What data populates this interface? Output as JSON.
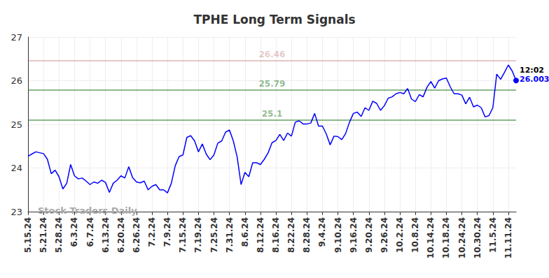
{
  "chart_data": {
    "type": "line",
    "title": "TPHE Long Term Signals",
    "watermark": "Stock Traders Daily",
    "color": "#0000ff",
    "grid": true,
    "ylim": [
      23,
      27
    ],
    "yticks": [
      23,
      24,
      25,
      26,
      27
    ],
    "categories": [
      "5.15.24",
      null,
      null,
      null,
      "5.21.24",
      null,
      null,
      null,
      "5.28.24",
      null,
      null,
      null,
      "6.3.24",
      null,
      null,
      null,
      "6.7.24",
      null,
      null,
      null,
      "6.13.24",
      null,
      null,
      null,
      "6.20.24",
      null,
      null,
      null,
      "6.26.24",
      null,
      null,
      null,
      "7.2.24",
      null,
      null,
      null,
      "7.9.24",
      null,
      null,
      null,
      "7.15.24",
      null,
      null,
      null,
      "7.19.24",
      null,
      null,
      null,
      "7.25.24",
      null,
      null,
      null,
      "7.31.24",
      null,
      null,
      null,
      "8.6.24",
      null,
      null,
      null,
      "8.12.24",
      null,
      null,
      null,
      "8.16.24",
      null,
      null,
      null,
      "8.22.24",
      null,
      null,
      null,
      "8.28.24",
      null,
      null,
      null,
      "9.4.24",
      null,
      null,
      null,
      "9.10.24",
      null,
      null,
      null,
      "9.16.24",
      null,
      null,
      null,
      "9.20.24",
      null,
      null,
      null,
      "9.26.24",
      null,
      null,
      null,
      "10.2.24",
      null,
      null,
      null,
      "10.8.24",
      null,
      null,
      null,
      "10.14.24",
      null,
      null,
      null,
      "10.18.24",
      null,
      null,
      null,
      "10.24.24",
      null,
      null,
      null,
      "10.30.24",
      null,
      null,
      null,
      "11.5.24",
      null,
      null,
      null,
      "11.11.24",
      null,
      null
    ],
    "values": [
      24.27,
      24.32,
      24.37,
      24.35,
      24.33,
      24.2,
      23.87,
      23.95,
      23.8,
      23.52,
      23.65,
      24.08,
      23.82,
      23.75,
      23.77,
      23.7,
      23.62,
      23.68,
      23.65,
      23.72,
      23.67,
      23.44,
      23.65,
      23.72,
      23.82,
      23.77,
      24.03,
      23.78,
      23.68,
      23.66,
      23.7,
      23.5,
      23.58,
      23.62,
      23.5,
      23.5,
      23.43,
      23.65,
      24.05,
      24.26,
      24.3,
      24.7,
      24.74,
      24.62,
      24.37,
      24.55,
      24.32,
      24.19,
      24.3,
      24.57,
      24.62,
      24.82,
      24.87,
      24.62,
      24.25,
      23.62,
      23.9,
      23.8,
      24.12,
      24.12,
      24.08,
      24.2,
      24.35,
      24.58,
      24.63,
      24.77,
      24.63,
      24.8,
      24.73,
      25.05,
      25.08,
      25.01,
      25.01,
      25.03,
      25.25,
      24.96,
      24.96,
      24.78,
      24.53,
      24.73,
      24.72,
      24.65,
      24.79,
      25.05,
      25.25,
      25.28,
      25.18,
      25.38,
      25.32,
      25.53,
      25.48,
      25.32,
      25.43,
      25.6,
      25.63,
      25.7,
      25.73,
      25.7,
      25.82,
      25.58,
      25.52,
      25.68,
      25.63,
      25.85,
      25.98,
      25.83,
      26.0,
      26.04,
      26.06,
      25.86,
      25.7,
      25.7,
      25.67,
      25.47,
      25.62,
      25.4,
      25.44,
      25.38,
      25.17,
      25.2,
      25.38,
      26.15,
      26.03,
      26.19,
      26.36,
      26.22,
      26.003
    ],
    "last_point_time": "12:02",
    "hlines": [
      {
        "value": 26.46,
        "color": "#8b0000"
      },
      {
        "value": 25.79,
        "color": "#006400"
      },
      {
        "value": 25.1,
        "color": "#006400"
      }
    ]
  }
}
